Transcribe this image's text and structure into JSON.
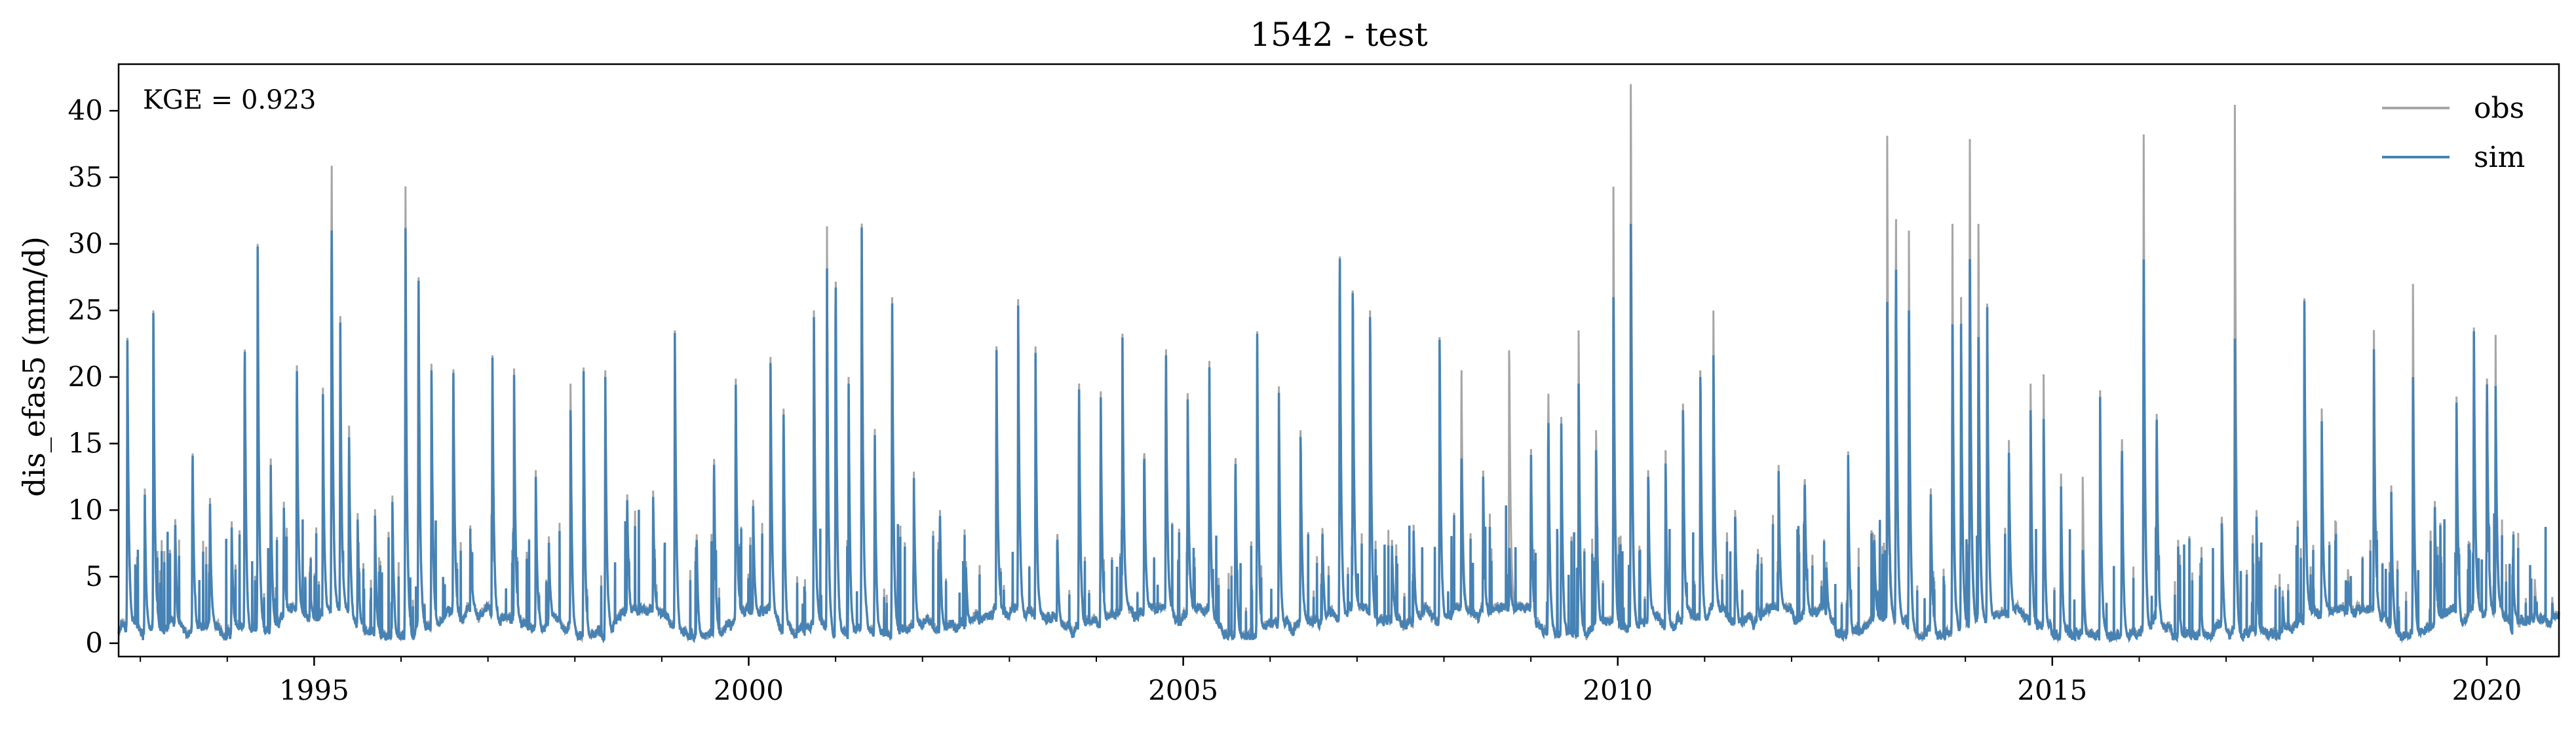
{
  "chart_data": {
    "type": "line",
    "title": "1542 - test",
    "xlabel": "",
    "ylabel": "dis_efas5 (mm/d)",
    "xlim": [
      1992.75,
      2020.83
    ],
    "ylim": [
      -1.0,
      43.5
    ],
    "x_ticks": [
      {
        "value": 1995,
        "label": "1995"
      },
      {
        "value": 2000,
        "label": "2000"
      },
      {
        "value": 2005,
        "label": "2005"
      },
      {
        "value": 2010,
        "label": "2010"
      },
      {
        "value": 2015,
        "label": "2015"
      },
      {
        "value": 2020,
        "label": "2020"
      }
    ],
    "y_ticks": [
      {
        "value": 0,
        "label": "0"
      },
      {
        "value": 5,
        "label": "5"
      },
      {
        "value": 10,
        "label": "10"
      },
      {
        "value": 15,
        "label": "15"
      },
      {
        "value": 20,
        "label": "20"
      },
      {
        "value": 25,
        "label": "25"
      },
      {
        "value": 30,
        "label": "30"
      },
      {
        "value": 35,
        "label": "35"
      },
      {
        "value": 40,
        "label": "40"
      }
    ],
    "legend_position": "top-right",
    "grid": false,
    "annotation": "KGE = 0.923",
    "series": [
      {
        "name": "obs",
        "color": "#a6a6a6"
      },
      {
        "name": "sim",
        "color": "#4682b4"
      }
    ],
    "peaks": [
      [
        1992.85,
        23.7,
        23.5
      ],
      [
        1993.05,
        12.0,
        11.5
      ],
      [
        1993.15,
        25.0,
        24.8
      ],
      [
        1993.4,
        9.0,
        8.5
      ],
      [
        1993.6,
        15.0,
        14.8
      ],
      [
        1993.8,
        11.0,
        10.5
      ],
      [
        1994.05,
        9.0,
        8.5
      ],
      [
        1994.2,
        24.0,
        23.8
      ],
      [
        1994.35,
        30.0,
        29.8
      ],
      [
        1994.5,
        14.0,
        13.5
      ],
      [
        1994.65,
        10.0,
        9.5
      ],
      [
        1994.8,
        21.0,
        20.5
      ],
      [
        1994.95,
        5.0,
        4.5
      ],
      [
        1995.1,
        18.0,
        17.5
      ],
      [
        1995.2,
        38.3,
        32.8
      ],
      [
        1995.3,
        23.0,
        22.5
      ],
      [
        1995.4,
        16.0,
        15.0
      ],
      [
        1995.5,
        9.0,
        8.5
      ],
      [
        1995.7,
        10.0,
        9.5
      ],
      [
        1995.9,
        11.0,
        10.5
      ],
      [
        1996.05,
        36.7,
        33.3
      ],
      [
        1996.2,
        29.5,
        29.2
      ],
      [
        1996.35,
        21.0,
        20.5
      ],
      [
        1996.6,
        20.8,
        20.5
      ],
      [
        1996.8,
        6.0,
        5.5
      ],
      [
        1997.05,
        21.2,
        21.0
      ],
      [
        1997.3,
        20.0,
        19.5
      ],
      [
        1997.55,
        13.0,
        12.5
      ],
      [
        1997.7,
        7.0,
        6.5
      ],
      [
        1997.95,
        19.5,
        17.5
      ],
      [
        1998.1,
        21.3,
        21.0
      ],
      [
        1998.35,
        20.5,
        20.0
      ],
      [
        1998.6,
        10.0,
        9.5
      ],
      [
        1998.9,
        9.5,
        9.0
      ],
      [
        1999.15,
        23.5,
        23.3
      ],
      [
        1999.4,
        9.0,
        8.5
      ],
      [
        1999.6,
        15.0,
        14.5
      ],
      [
        1999.85,
        20.0,
        19.5
      ],
      [
        2000.05,
        9.5,
        9.0
      ],
      [
        2000.25,
        21.0,
        20.5
      ],
      [
        2000.4,
        19.5,
        19.0
      ],
      [
        2000.75,
        25.0,
        24.5
      ],
      [
        2000.9,
        31.8,
        28.5
      ],
      [
        2001.0,
        30.5,
        30.0
      ],
      [
        2001.15,
        20.0,
        19.5
      ],
      [
        2001.3,
        31.5,
        31.2
      ],
      [
        2001.45,
        17.0,
        16.5
      ],
      [
        2001.65,
        28.0,
        27.5
      ],
      [
        2001.9,
        12.5,
        12.0
      ],
      [
        2002.2,
        11.0,
        10.5
      ],
      [
        2002.5,
        5.0,
        4.5
      ],
      [
        2002.85,
        21.5,
        21.2
      ],
      [
        2003.1,
        24.5,
        24.0
      ],
      [
        2003.3,
        21.5,
        21.0
      ],
      [
        2003.55,
        8.0,
        7.5
      ],
      [
        2003.8,
        20.5,
        20.0
      ],
      [
        2004.05,
        19.5,
        19.0
      ],
      [
        2004.3,
        21.8,
        21.5
      ],
      [
        2004.55,
        14.0,
        13.5
      ],
      [
        2004.8,
        22.5,
        22.0
      ],
      [
        2005.05,
        18.0,
        17.5
      ],
      [
        2005.3,
        20.0,
        19.5
      ],
      [
        2005.6,
        15.5,
        15.0
      ],
      [
        2005.85,
        25.0,
        24.8
      ],
      [
        2006.1,
        19.0,
        18.5
      ],
      [
        2006.35,
        16.0,
        15.5
      ],
      [
        2006.6,
        8.0,
        7.5
      ],
      [
        2006.8,
        31.0,
        30.8
      ],
      [
        2006.95,
        26.5,
        26.3
      ],
      [
        2007.15,
        25.0,
        24.5
      ],
      [
        2007.4,
        7.0,
        6.5
      ],
      [
        2007.65,
        8.5,
        8.0
      ],
      [
        2007.95,
        23.0,
        22.8
      ],
      [
        2008.2,
        20.5,
        13.0
      ],
      [
        2008.45,
        12.0,
        11.5
      ],
      [
        2008.75,
        22.0,
        5.5
      ],
      [
        2009.0,
        14.0,
        13.5
      ],
      [
        2009.2,
        20.5,
        18.0
      ],
      [
        2009.35,
        17.0,
        16.5
      ],
      [
        2009.55,
        23.5,
        19.5
      ],
      [
        2009.75,
        16.0,
        14.5
      ],
      [
        2009.95,
        34.3,
        26.0
      ],
      [
        2010.15,
        42.0,
        31.5
      ],
      [
        2010.35,
        13.0,
        12.5
      ],
      [
        2010.55,
        14.5,
        13.5
      ],
      [
        2010.75,
        18.0,
        17.5
      ],
      [
        2010.95,
        20.5,
        20.0
      ],
      [
        2011.1,
        23.5,
        20.0
      ],
      [
        2011.35,
        10.0,
        9.5
      ],
      [
        2011.6,
        5.0,
        4.5
      ],
      [
        2011.85,
        12.0,
        11.5
      ],
      [
        2012.15,
        12.0,
        11.5
      ],
      [
        2012.4,
        4.5,
        4.0
      ],
      [
        2012.65,
        15.3,
        15.0
      ],
      [
        2012.95,
        8.0,
        7.5
      ],
      [
        2013.1,
        38.0,
        25.0
      ],
      [
        2013.2,
        34.3,
        30.0
      ],
      [
        2013.35,
        31.0,
        25.0
      ],
      [
        2013.6,
        12.0,
        11.5
      ],
      [
        2013.85,
        33.7,
        25.5
      ],
      [
        2013.95,
        26.0,
        24.0
      ],
      [
        2014.05,
        39.8,
        30.0
      ],
      [
        2014.15,
        31.5,
        23.0
      ],
      [
        2014.25,
        25.5,
        25.2
      ],
      [
        2014.5,
        14.0,
        13.0
      ],
      [
        2014.75,
        19.5,
        17.5
      ],
      [
        2014.9,
        20.0,
        16.5
      ],
      [
        2015.1,
        13.0,
        12.0
      ],
      [
        2015.35,
        12.5,
        7.0
      ],
      [
        2015.55,
        19.0,
        18.5
      ],
      [
        2015.8,
        17.0,
        16.0
      ],
      [
        2016.05,
        40.5,
        30.3
      ],
      [
        2016.2,
        18.0,
        17.5
      ],
      [
        2016.45,
        6.5,
        6.0
      ],
      [
        2016.7,
        6.0,
        5.0
      ],
      [
        2016.95,
        9.5,
        9.0
      ],
      [
        2017.1,
        41.3,
        23.0
      ],
      [
        2017.35,
        10.0,
        9.5
      ],
      [
        2017.65,
        3.5,
        3.0
      ],
      [
        2017.9,
        25.5,
        25.3
      ],
      [
        2018.1,
        16.5,
        15.5
      ],
      [
        2018.4,
        4.0,
        3.0
      ],
      [
        2018.7,
        22.0,
        20.5
      ],
      [
        2018.9,
        11.0,
        10.5
      ],
      [
        2019.15,
        27.0,
        20.0
      ],
      [
        2019.4,
        10.5,
        10.0
      ],
      [
        2019.65,
        18.0,
        17.5
      ],
      [
        2019.85,
        23.5,
        23.2
      ],
      [
        2020.0,
        20.0,
        19.5
      ],
      [
        2020.1,
        22.0,
        18.0
      ],
      [
        2020.3,
        6.5,
        6.0
      ],
      [
        2020.55,
        4.0,
        2.5
      ],
      [
        2020.75,
        2.5,
        2.0
      ]
    ]
  }
}
